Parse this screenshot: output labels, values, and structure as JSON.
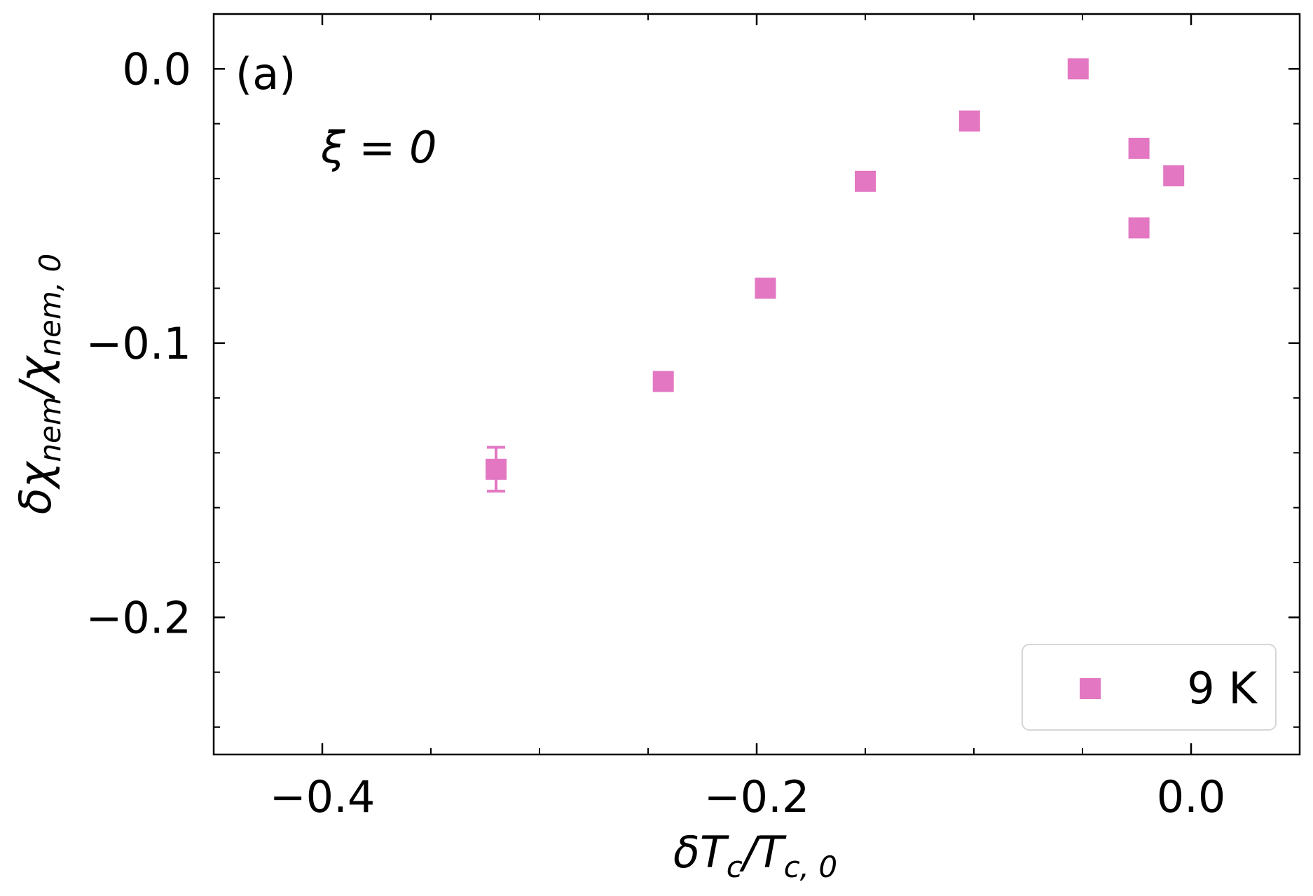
{
  "chart_data": {
    "type": "scatter",
    "panel_label": "(a)",
    "annotation": "ξ = 0",
    "xlabel": {
      "main": "δT",
      "sub": "c",
      "slash": "/T",
      "sub2": "c, 0"
    },
    "ylabel": {
      "main": "δχ",
      "sub": "nem",
      "slash": "/χ",
      "sub2": "nem, 0"
    },
    "xlim": [
      -0.45,
      0.05
    ],
    "ylim": [
      -0.25,
      0.02
    ],
    "xticks": [
      {
        "value": -0.4,
        "label": "−0.4"
      },
      {
        "value": -0.2,
        "label": "−0.2"
      },
      {
        "value": 0.0,
        "label": "0.0"
      }
    ],
    "yticks": [
      {
        "value": 0.0,
        "label": "0.0"
      },
      {
        "value": -0.1,
        "label": "−0.1"
      },
      {
        "value": -0.2,
        "label": "−0.2"
      }
    ],
    "x_minor_step": 0.05,
    "y_minor_step": 0.02,
    "legend": {
      "position": "lower-right",
      "entries": [
        {
          "label": "9 K",
          "color": "#e377c2"
        }
      ]
    },
    "series": [
      {
        "name": "9 K",
        "color": "#e377c2",
        "marker": "square",
        "points": [
          {
            "x": -0.32,
            "y": -0.146,
            "err": 0.008
          },
          {
            "x": -0.243,
            "y": -0.114,
            "err": 0.003
          },
          {
            "x": -0.196,
            "y": -0.08,
            "err": 0.002
          },
          {
            "x": -0.15,
            "y": -0.041,
            "err": 0.002
          },
          {
            "x": -0.102,
            "y": -0.019,
            "err": 0.002
          },
          {
            "x": -0.052,
            "y": 0.0,
            "err": 0.002
          },
          {
            "x": -0.024,
            "y": -0.029,
            "err": 0.002
          },
          {
            "x": -0.008,
            "y": -0.039,
            "err": 0.002
          },
          {
            "x": -0.024,
            "y": -0.058,
            "err": 0.002
          }
        ]
      }
    ]
  }
}
